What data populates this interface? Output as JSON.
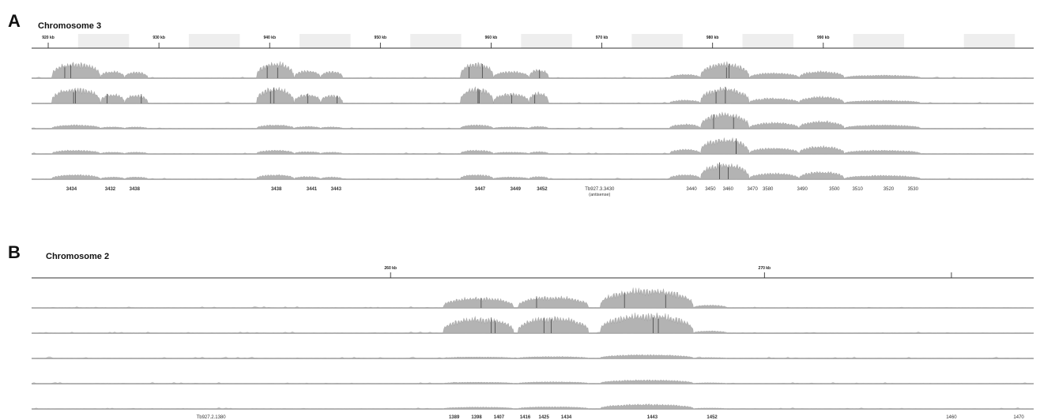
{
  "chart_data": [
    {
      "type": "area",
      "panel_label": "A",
      "title": "Chromosome 3",
      "tracks": 5,
      "kb_range": [
        918.5,
        1009
      ],
      "kb_ticks": [
        920,
        930,
        940,
        950,
        960,
        970,
        980,
        990
      ],
      "kb_tick_labels": [
        "920 kb",
        "930 kb",
        "940 kb",
        "950 kb",
        "960 kb",
        "970 kb",
        "980 kb",
        "990 kb"
      ],
      "gene_labels": [
        {
          "text": "3434",
          "kb": 922.1,
          "bold": true
        },
        {
          "text": "3432",
          "kb": 925.6,
          "bold": true
        },
        {
          "text": "3438",
          "kb": 927.8,
          "bold": true
        },
        {
          "text": "3438",
          "kb": 940.6,
          "bold": true
        },
        {
          "text": "3441",
          "kb": 943.8,
          "bold": true
        },
        {
          "text": "3443",
          "kb": 946.0,
          "bold": true
        },
        {
          "text": "3447",
          "kb": 959.0,
          "bold": true
        },
        {
          "text": "3449",
          "kb": 962.2,
          "bold": true
        },
        {
          "text": "3452",
          "kb": 964.6,
          "bold": true
        },
        {
          "text": "Tb927.3.3430",
          "sub": "(antisense)",
          "kb": 969.8,
          "bold": false
        },
        {
          "text": "3440",
          "kb": 978.1,
          "bold": false
        },
        {
          "text": "3450",
          "kb": 979.8,
          "bold": false
        },
        {
          "text": "3460",
          "kb": 981.4,
          "bold": false
        },
        {
          "text": "3470",
          "kb": 983.6,
          "bold": false
        },
        {
          "text": "3580",
          "kb": 985.0,
          "bold": false
        },
        {
          "text": "3490",
          "kb": 988.1,
          "bold": false
        },
        {
          "text": "3500",
          "kb": 991.0,
          "bold": false
        },
        {
          "text": "3510",
          "kb": 993.1,
          "bold": false
        },
        {
          "text": "3520",
          "kb": 995.9,
          "bold": false
        },
        {
          "text": "3530",
          "kb": 998.1,
          "bold": false
        }
      ],
      "coverage_regions": [
        {
          "kb": [
            920.3,
            924.7
          ],
          "track_levels": [
            1.0,
            1.0,
            0.25,
            0.25,
            0.3
          ]
        },
        {
          "kb": [
            924.7,
            926.9
          ],
          "track_levels": [
            0.45,
            0.6,
            0.12,
            0.12,
            0.15
          ]
        },
        {
          "kb": [
            926.9,
            929.0
          ],
          "track_levels": [
            0.4,
            0.55,
            0.12,
            0.12,
            0.15
          ]
        },
        {
          "kb": [
            938.8,
            942.2
          ],
          "track_levels": [
            1.0,
            1.0,
            0.25,
            0.25,
            0.3
          ]
        },
        {
          "kb": [
            942.2,
            944.6
          ],
          "track_levels": [
            0.5,
            0.6,
            0.15,
            0.15,
            0.18
          ]
        },
        {
          "kb": [
            944.6,
            946.6
          ],
          "track_levels": [
            0.45,
            0.55,
            0.12,
            0.12,
            0.15
          ]
        },
        {
          "kb": [
            957.2,
            960.2
          ],
          "track_levels": [
            1.0,
            1.0,
            0.25,
            0.25,
            0.3
          ]
        },
        {
          "kb": [
            960.2,
            963.4
          ],
          "track_levels": [
            0.45,
            0.65,
            0.12,
            0.12,
            0.15
          ]
        },
        {
          "kb": [
            963.4,
            965.2
          ],
          "track_levels": [
            0.55,
            0.7,
            0.15,
            0.15,
            0.18
          ]
        },
        {
          "kb": [
            976.1,
            978.9
          ],
          "track_levels": [
            0.25,
            0.22,
            0.3,
            0.3,
            0.3
          ]
        },
        {
          "kb": [
            978.9,
            983.3
          ],
          "track_levels": [
            1.0,
            1.0,
            1.0,
            1.0,
            1.0
          ]
        },
        {
          "kb": [
            983.3,
            987.8
          ],
          "track_levels": [
            0.35,
            0.35,
            0.4,
            0.4,
            0.4
          ]
        },
        {
          "kb": [
            987.8,
            991.9
          ],
          "track_levels": [
            0.45,
            0.45,
            0.5,
            0.5,
            0.5
          ]
        },
        {
          "kb": [
            991.9,
            998.8
          ],
          "track_levels": [
            0.2,
            0.2,
            0.25,
            0.25,
            0.25
          ]
        }
      ]
    },
    {
      "type": "area",
      "panel_label": "B",
      "title": "Chromosome 2",
      "tracks": 5,
      "kb_range": [
        250.4,
        277.2
      ],
      "kb_ticks": [
        260,
        270,
        275
      ],
      "kb_tick_labels": [
        "260 kb",
        "270 kb",
        ""
      ],
      "gene_labels": [
        {
          "text": "Tb927.2.1380",
          "kb": 255.2,
          "bold": false
        },
        {
          "text": "1389",
          "kb": 261.7,
          "bold": true
        },
        {
          "text": "1398",
          "kb": 262.3,
          "bold": true
        },
        {
          "text": "1407",
          "kb": 262.9,
          "bold": true
        },
        {
          "text": "1416",
          "kb": 263.6,
          "bold": true
        },
        {
          "text": "1425",
          "kb": 264.1,
          "bold": true
        },
        {
          "text": "1434",
          "kb": 264.7,
          "bold": true
        },
        {
          "text": "1443",
          "kb": 267.0,
          "bold": true
        },
        {
          "text": "1452",
          "kb": 268.6,
          "bold": true
        },
        {
          "text": "1460",
          "kb": 275.0,
          "bold": false
        },
        {
          "text": "1470",
          "kb": 276.8,
          "bold": false
        }
      ],
      "coverage_regions": [
        {
          "kb": [
            261.4,
            263.3
          ],
          "track_levels": [
            0.55,
            0.8,
            0.08,
            0.08,
            0.1
          ]
        },
        {
          "kb": [
            263.4,
            265.3
          ],
          "track_levels": [
            0.6,
            0.85,
            0.1,
            0.1,
            0.12
          ]
        },
        {
          "kb": [
            265.6,
            268.1
          ],
          "track_levels": [
            1.0,
            1.0,
            0.2,
            0.2,
            0.25
          ]
        },
        {
          "kb": [
            268.1,
            269.0
          ],
          "track_levels": [
            0.15,
            0.12,
            0.05,
            0.05,
            0.05
          ]
        }
      ]
    }
  ]
}
